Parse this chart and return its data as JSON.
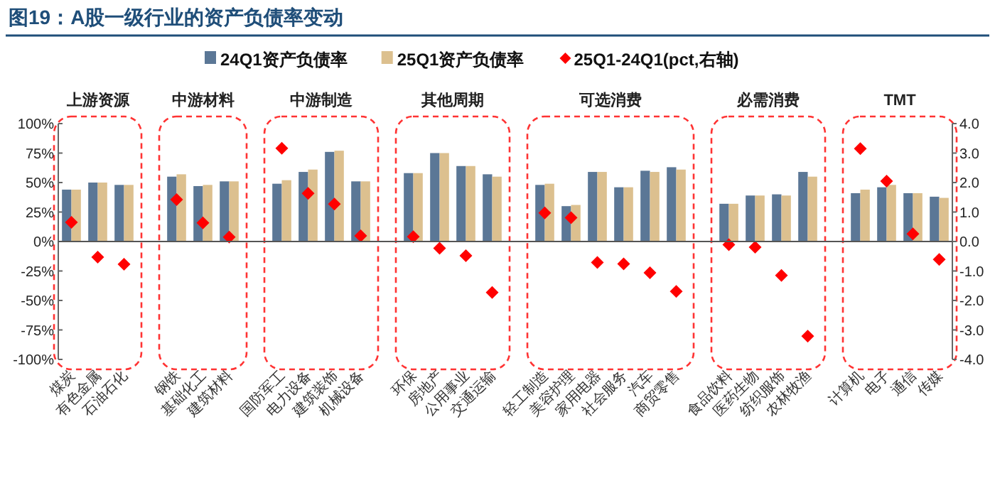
{
  "chart_data": {
    "type": "bar",
    "title": "图19：A股一级行业的资产负债率变动",
    "categories": [
      "煤炭",
      "有色金属",
      "石油石化",
      null,
      "钢铁",
      "基础化工",
      "建筑材料",
      null,
      "国防军工",
      "电力设备",
      "建筑装饰",
      "机械设备",
      null,
      "环保",
      "房地产",
      "公用事业",
      "交通运输",
      null,
      "轻工制造",
      "美容护理",
      "家用电器",
      "社会服务",
      "汽车",
      "商贸零售",
      null,
      "食品饮料",
      "医药生物",
      "纺织服饰",
      "农林牧渔",
      null,
      "计算机",
      "电子",
      "通信",
      "传媒"
    ],
    "series": [
      {
        "name": "24Q1资产负债率",
        "color": "#5b7796",
        "values": [
          44,
          50,
          48,
          null,
          55,
          47,
          51,
          null,
          49,
          59,
          76,
          51,
          null,
          58,
          75,
          64,
          57,
          null,
          48,
          30,
          59,
          46,
          60,
          63,
          null,
          32,
          39,
          40,
          59,
          null,
          41,
          46,
          41,
          38
        ]
      },
      {
        "name": "25Q1资产负债率",
        "color": "#dcc08f",
        "values": [
          44,
          50,
          48,
          null,
          57,
          48,
          51,
          null,
          52,
          61,
          77,
          51,
          null,
          58,
          75,
          64,
          55,
          null,
          49,
          31,
          59,
          46,
          59,
          61,
          null,
          32,
          39,
          39,
          55,
          null,
          44,
          48,
          41,
          37
        ]
      },
      {
        "name": "25Q1-24Q1(pct,右轴)",
        "type": "scatter",
        "axis": "y2",
        "marker": "diamond",
        "color": "#ff0000",
        "values": [
          0.65,
          -0.53,
          -0.77,
          null,
          1.42,
          0.63,
          0.15,
          null,
          3.16,
          1.63,
          1.27,
          0.19,
          null,
          0.16,
          -0.23,
          -0.48,
          -1.73,
          null,
          0.97,
          0.81,
          -0.71,
          -0.76,
          -1.06,
          -1.69,
          null,
          -0.11,
          -0.19,
          -1.15,
          -3.21,
          null,
          3.15,
          2.05,
          0.26,
          -0.61
        ]
      }
    ],
    "ylim": [
      -100,
      100
    ],
    "yticks": [
      {
        "value": -100,
        "label": "-100%"
      },
      {
        "value": -75,
        "label": "-75%"
      },
      {
        "value": -50,
        "label": "-50%"
      },
      {
        "value": -25,
        "label": "-25%"
      },
      {
        "value": 0,
        "label": "0%"
      },
      {
        "value": 25,
        "label": "25%"
      },
      {
        "value": 50,
        "label": "50%"
      },
      {
        "value": 75,
        "label": "75%"
      },
      {
        "value": 100,
        "label": "100%"
      }
    ],
    "y2lim": [
      -4,
      4
    ],
    "y2ticks": [
      {
        "value": -4,
        "label": "-4.0"
      },
      {
        "value": -3,
        "label": "-3.0"
      },
      {
        "value": -2,
        "label": "-2.0"
      },
      {
        "value": -1,
        "label": "-1.0"
      },
      {
        "value": 0,
        "label": "0.0"
      },
      {
        "value": 1,
        "label": "1.0"
      },
      {
        "value": 2,
        "label": "2.0"
      },
      {
        "value": 3,
        "label": "3.0"
      },
      {
        "value": 4,
        "label": "4.0"
      }
    ],
    "annotations": [
      "上游资源",
      "中游材料",
      "中游制造",
      "其他周期",
      "可选消费",
      "必需消费",
      "TMT"
    ],
    "legend": "top"
  }
}
